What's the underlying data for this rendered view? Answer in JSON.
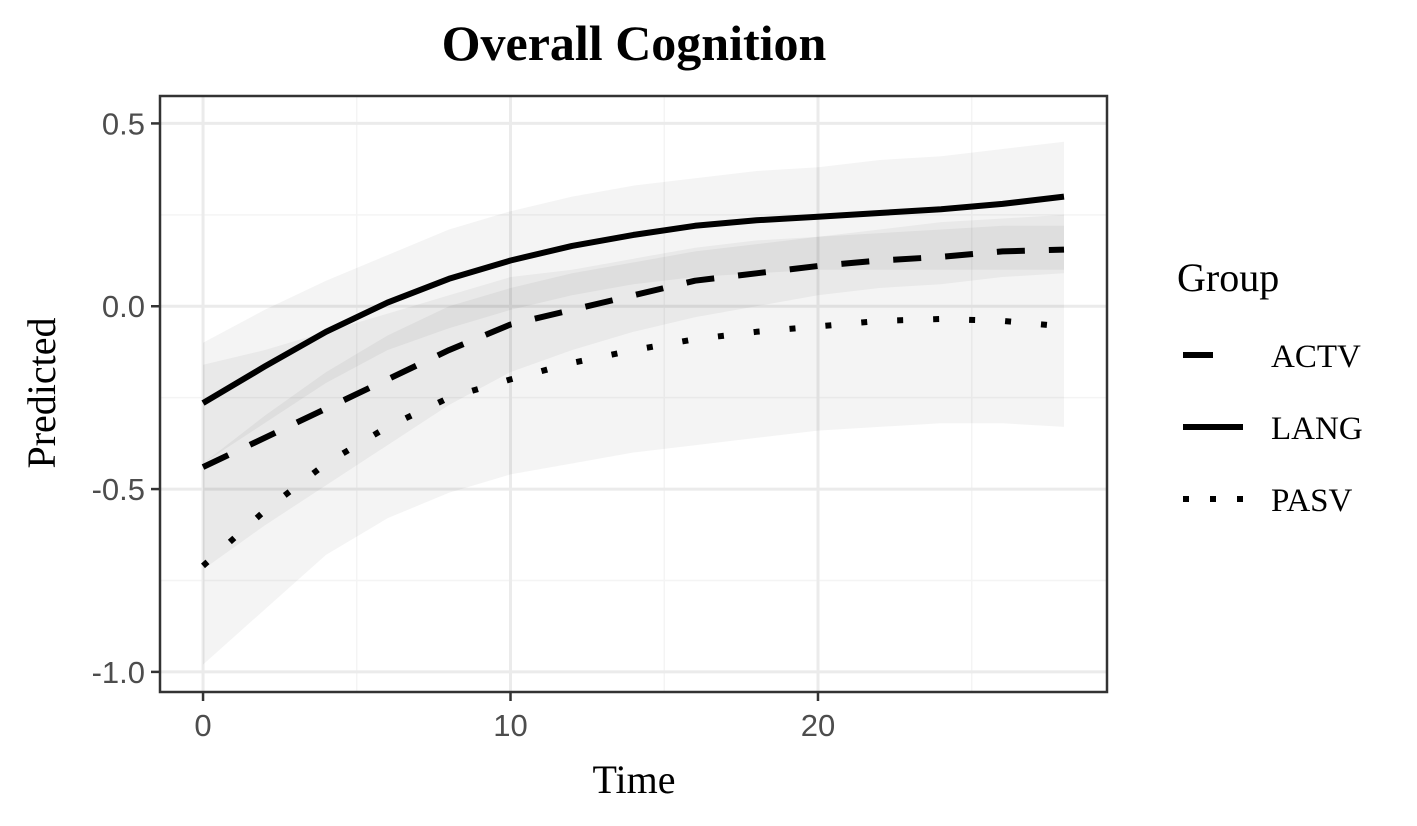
{
  "chart_data": {
    "type": "line",
    "title": "Overall Cognition",
    "xlabel": "Time",
    "ylabel": "Predicted",
    "xlim": [
      -1.4,
      29.4
    ],
    "ylim": [
      -1.055,
      0.575
    ],
    "x_ticks": [
      0,
      10,
      20
    ],
    "x_tick_labels": [
      "0",
      "10",
      "20"
    ],
    "y_ticks": [
      0.5,
      0.0,
      -0.5,
      -1.0
    ],
    "y_tick_labels": [
      "0.5",
      "0.0",
      "-0.5",
      "-1.0"
    ],
    "grid": true,
    "legend": {
      "title": "Group",
      "position": "right"
    },
    "series": [
      {
        "name": "ACTV",
        "linetype": "dashed",
        "x": [
          0,
          2,
          4,
          6,
          8,
          10,
          12,
          14,
          16,
          18,
          20,
          22,
          24,
          26,
          28
        ],
        "y": [
          -0.44,
          -0.36,
          -0.28,
          -0.2,
          -0.12,
          -0.05,
          -0.01,
          0.03,
          0.07,
          0.09,
          0.11,
          0.125,
          0.135,
          0.15,
          0.155
        ],
        "lower": [
          -0.72,
          -0.6,
          -0.49,
          -0.38,
          -0.27,
          -0.18,
          -0.12,
          -0.07,
          -0.03,
          0.0,
          0.03,
          0.05,
          0.06,
          0.08,
          0.09
        ],
        "upper": [
          -0.16,
          -0.12,
          -0.07,
          -0.02,
          0.03,
          0.08,
          0.1,
          0.13,
          0.16,
          0.18,
          0.19,
          0.2,
          0.21,
          0.22,
          0.22
        ]
      },
      {
        "name": "LANG",
        "linetype": "solid",
        "x": [
          0,
          2,
          4,
          6,
          8,
          10,
          12,
          14,
          16,
          18,
          20,
          22,
          24,
          26,
          28
        ],
        "y": [
          -0.265,
          -0.165,
          -0.07,
          0.01,
          0.075,
          0.125,
          0.165,
          0.195,
          0.22,
          0.235,
          0.245,
          0.255,
          0.265,
          0.28,
          0.3
        ],
        "lower": [
          -0.43,
          -0.32,
          -0.21,
          -0.12,
          -0.06,
          -0.01,
          0.03,
          0.06,
          0.08,
          0.09,
          0.1,
          0.1,
          0.1,
          0.1,
          0.1
        ],
        "upper": [
          -0.1,
          -0.01,
          0.07,
          0.14,
          0.21,
          0.26,
          0.3,
          0.33,
          0.35,
          0.37,
          0.38,
          0.4,
          0.41,
          0.43,
          0.45
        ]
      },
      {
        "name": "PASV",
        "linetype": "dotted",
        "x": [
          0,
          2,
          4,
          6,
          8,
          10,
          12,
          14,
          16,
          18,
          20,
          22,
          24,
          26,
          28
        ],
        "y": [
          -0.71,
          -0.56,
          -0.43,
          -0.33,
          -0.25,
          -0.2,
          -0.155,
          -0.12,
          -0.09,
          -0.07,
          -0.055,
          -0.04,
          -0.035,
          -0.04,
          -0.055
        ],
        "lower": [
          -0.98,
          -0.83,
          -0.68,
          -0.58,
          -0.51,
          -0.46,
          -0.43,
          -0.4,
          -0.38,
          -0.36,
          -0.34,
          -0.33,
          -0.32,
          -0.32,
          -0.33
        ],
        "upper": [
          -0.43,
          -0.3,
          -0.18,
          -0.08,
          0.0,
          0.05,
          0.09,
          0.12,
          0.15,
          0.17,
          0.19,
          0.21,
          0.23,
          0.24,
          0.25
        ]
      }
    ]
  },
  "colors": {
    "line": "#000000",
    "ribbon": "#000000",
    "grid_major": "#ebebeb",
    "grid_minor": "#f4f4f4",
    "panel_border": "#333333",
    "tick_text": "#4d4d4d"
  }
}
